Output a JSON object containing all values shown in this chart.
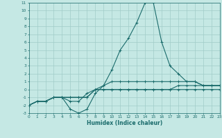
{
  "xlabel": "Humidex (Indice chaleur)",
  "xlim": [
    0,
    23
  ],
  "ylim": [
    -3,
    11
  ],
  "xticks": [
    0,
    1,
    2,
    3,
    4,
    5,
    6,
    7,
    8,
    9,
    10,
    11,
    12,
    13,
    14,
    15,
    16,
    17,
    18,
    19,
    20,
    21,
    22,
    23
  ],
  "yticks": [
    -3,
    -2,
    -1,
    0,
    1,
    2,
    3,
    4,
    5,
    6,
    7,
    8,
    9,
    10,
    11
  ],
  "background_color": "#c5e8e4",
  "line_color": "#1a6b6b",
  "grid_color": "#a0ccc8",
  "curves": [
    {
      "x": [
        0,
        1,
        2,
        3,
        4,
        5,
        6,
        7,
        8,
        9,
        10,
        11,
        12,
        13,
        14,
        15,
        16,
        17,
        18,
        19,
        20,
        21,
        22,
        23
      ],
      "y": [
        -2,
        -1.5,
        -1.5,
        -1,
        -1,
        -2.5,
        -3,
        -2.5,
        -0.5,
        0.5,
        2.5,
        5,
        6.5,
        8.5,
        11,
        11,
        6,
        3,
        2,
        1,
        1,
        0.5,
        0.5,
        0.5
      ]
    },
    {
      "x": [
        0,
        1,
        2,
        3,
        4,
        5,
        6,
        7,
        8,
        9,
        10,
        11,
        12,
        13,
        14,
        15,
        16,
        17,
        18,
        19,
        20,
        21,
        22,
        23
      ],
      "y": [
        -2,
        -1.5,
        -1.5,
        -1,
        -1,
        -1.5,
        -1.5,
        -0.5,
        0,
        0.5,
        1,
        1,
        1,
        1,
        1,
        1,
        1,
        1,
        1,
        1,
        1,
        0.5,
        0.5,
        0.5
      ]
    },
    {
      "x": [
        0,
        1,
        2,
        3,
        4,
        5,
        6,
        7,
        8,
        9,
        10,
        11,
        12,
        13,
        14,
        15,
        16,
        17,
        18,
        19,
        20,
        21,
        22,
        23
      ],
      "y": [
        -2,
        -1.5,
        -1.5,
        -1,
        -1,
        -1,
        -1,
        -1,
        0,
        0,
        0,
        0,
        0,
        0,
        0,
        0,
        0,
        0,
        0.5,
        0.5,
        0.5,
        0.5,
        0.5,
        0.5
      ]
    },
    {
      "x": [
        0,
        1,
        2,
        3,
        4,
        5,
        6,
        7,
        8,
        9,
        10,
        11,
        12,
        13,
        14,
        15,
        16,
        17,
        18,
        19,
        20,
        21,
        22,
        23
      ],
      "y": [
        -2,
        -1.5,
        -1.5,
        -1,
        -1,
        -1,
        -1,
        -1,
        0,
        0,
        0,
        0,
        0,
        0,
        0,
        0,
        0,
        0,
        0,
        0,
        0,
        0,
        0,
        0
      ]
    }
  ]
}
